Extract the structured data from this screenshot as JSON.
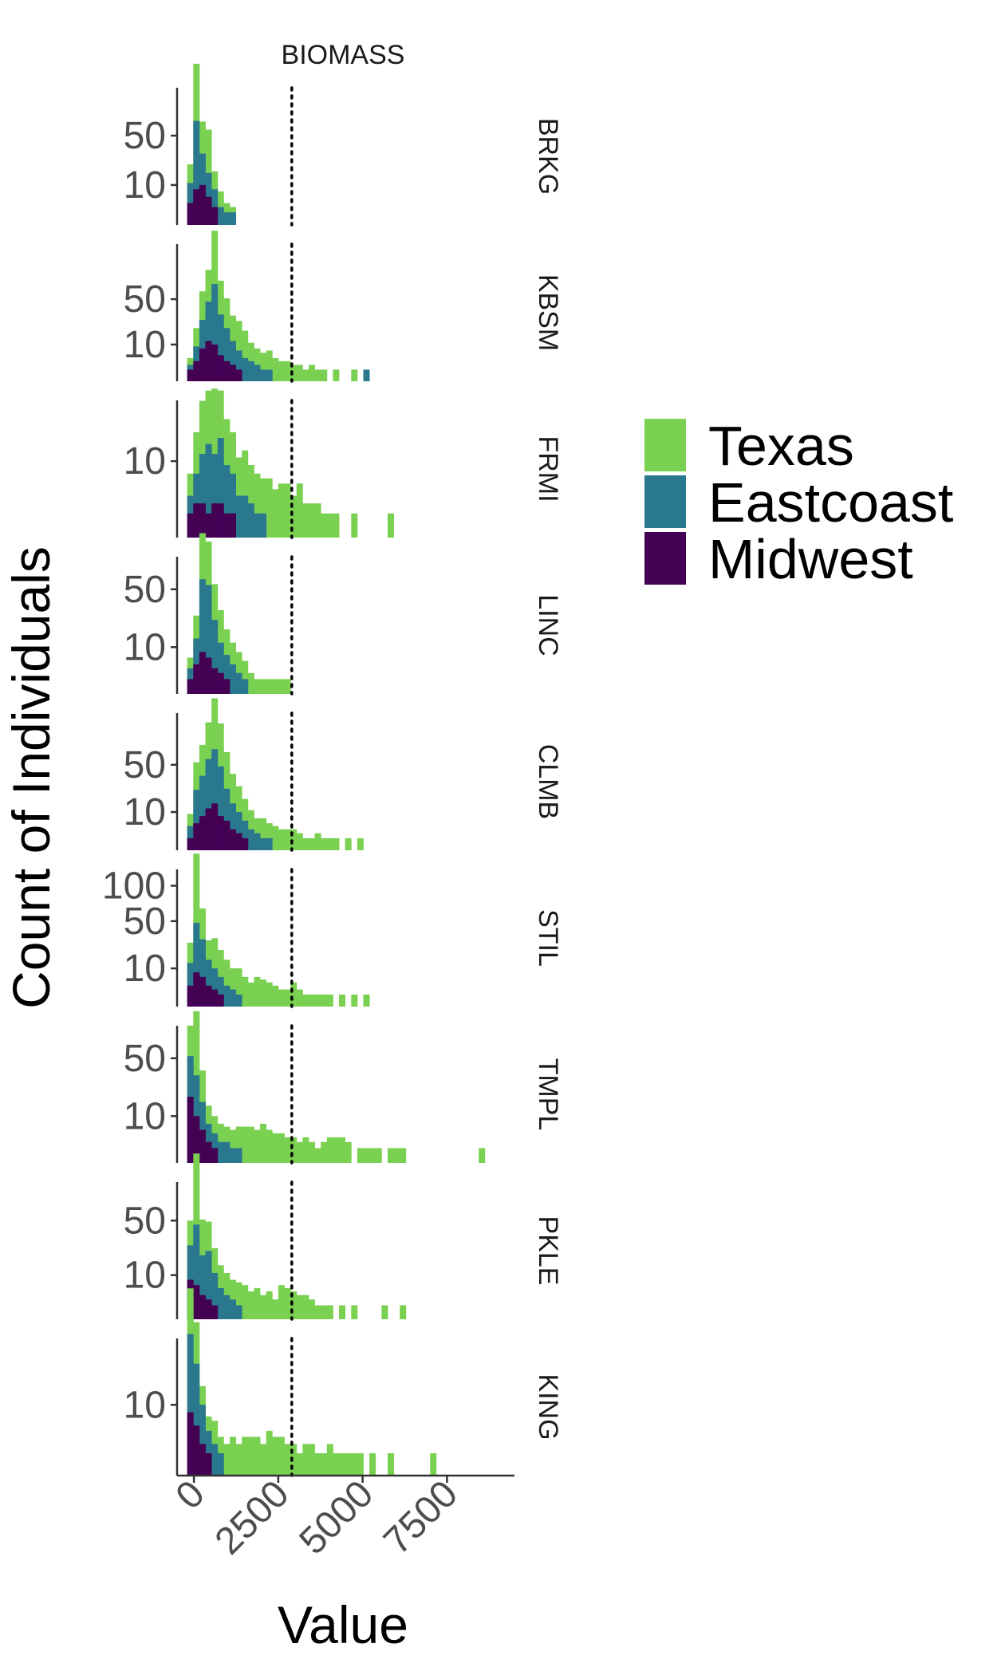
{
  "chart_data": {
    "type": "bar",
    "layout": "stacked histogram facets",
    "title": "BIOMASS",
    "xlabel": "Value",
    "ylabel": "Count of Individuals",
    "y_scale": "sqrt",
    "xlim": [
      -500,
      9500
    ],
    "x_ticks": [
      0,
      2500,
      5000,
      7500
    ],
    "x_tick_labels": [
      "0",
      "2500",
      "5000",
      "7500"
    ],
    "reference_line": 2900,
    "bin_start": -200,
    "bin_width": 180,
    "grid": false,
    "legend_position": "right",
    "series": [
      {
        "name": "Texas",
        "color": "#7AD151"
      },
      {
        "name": "Eastcoast",
        "color": "#2A788E"
      },
      {
        "name": "Midwest",
        "color": "#440154"
      }
    ],
    "facets": [
      {
        "label": "BRKG",
        "ymax": 110,
        "y_ticks": [
          10,
          50
        ],
        "y_tick_labels": [
          "10",
          "50"
        ],
        "Midwest": [
          3,
          8,
          10,
          5,
          2
        ],
        "Eastcoast": [
          8,
          60,
          22,
          12,
          6,
          2,
          1,
          1
        ],
        "Texas": [
          12,
          95,
          35,
          40,
          10,
          5,
          2,
          1
        ]
      },
      {
        "label": "KBSM",
        "ymax": 130,
        "y_ticks": [
          10,
          50
        ],
        "y_tick_labels": [
          "10",
          "50"
        ],
        "Midwest": [
          1,
          3,
          8,
          12,
          10,
          5,
          3,
          2,
          1
        ],
        "Eastcoast": [
          1,
          6,
          20,
          35,
          60,
          28,
          18,
          10,
          6,
          4,
          3,
          2,
          1,
          1,
          0,
          0,
          0,
          0,
          0,
          0,
          0,
          0,
          0,
          0,
          0,
          0,
          0,
          0,
          0,
          1
        ],
        "Texas": [
          2,
          12,
          32,
          45,
          98,
          42,
          30,
          20,
          20,
          15,
          8,
          6,
          5,
          6,
          4,
          3,
          3,
          2,
          2,
          1,
          2,
          1,
          1,
          0,
          1,
          0,
          0,
          1
        ]
      },
      {
        "label": "FRMI",
        "ymax": 30,
        "y_ticks": [
          10
        ],
        "y_tick_labels": [
          "10"
        ],
        "Midwest": [
          1,
          2,
          2,
          1,
          2,
          2,
          1,
          1
        ],
        "Eastcoast": [
          2,
          5,
          10,
          14,
          10,
          15,
          8,
          6,
          3,
          3,
          2,
          1,
          1
        ],
        "Texas": [
          4,
          12,
          20,
          22,
          26,
          20,
          15,
          12,
          8,
          10,
          7,
          6,
          5,
          6,
          4,
          5,
          5,
          3,
          5,
          2,
          2,
          2,
          1,
          1,
          1,
          0,
          0,
          1,
          0,
          0,
          0,
          0,
          0,
          1
        ]
      },
      {
        "label": "LINC",
        "ymax": 80,
        "y_ticks": [
          10,
          50
        ],
        "y_tick_labels": [
          "10",
          "50"
        ],
        "Midwest": [
          1,
          4,
          8,
          6,
          3,
          2,
          1
        ],
        "Eastcoast": [
          2,
          10,
          52,
          48,
          22,
          10,
          6,
          4,
          2,
          1
        ],
        "Texas": [
          3,
          14,
          58,
          52,
          30,
          20,
          12,
          8,
          6,
          4,
          2,
          1,
          1,
          1,
          1,
          1,
          1
        ]
      },
      {
        "label": "CLMB",
        "ymax": 120,
        "y_ticks": [
          10,
          50
        ],
        "y_tick_labels": [
          "10",
          "50"
        ],
        "Midwest": [
          1,
          5,
          8,
          12,
          15,
          8,
          6,
          3,
          2,
          1
        ],
        "Eastcoast": [
          3,
          20,
          30,
          45,
          55,
          40,
          20,
          12,
          8,
          5,
          3,
          2,
          1,
          1
        ],
        "Texas": [
          5,
          28,
          38,
          55,
          88,
          62,
          40,
          25,
          18,
          12,
          8,
          5,
          6,
          4,
          4,
          3,
          3,
          3,
          2,
          1,
          1,
          2,
          1,
          1,
          1,
          0,
          1,
          0,
          1
        ]
      },
      {
        "label": "STIL",
        "ymax": 120,
        "y_ticks": [
          10,
          50,
          100
        ],
        "y_tick_labels": [
          "10",
          "50",
          "100"
        ],
        "Midwest": [
          3,
          8,
          6,
          3,
          2,
          1
        ],
        "Eastcoast": [
          10,
          40,
          25,
          12,
          8,
          5,
          3,
          2,
          1
        ],
        "Texas": [
          15,
          112,
          35,
          15,
          22,
          16,
          12,
          8,
          9,
          6,
          4,
          6,
          5,
          4,
          3,
          2,
          2,
          4,
          2,
          1,
          1,
          1,
          1,
          1,
          0,
          1,
          0,
          1,
          0,
          1
        ]
      },
      {
        "label": "TMPL",
        "ymax": 80,
        "y_ticks": [
          10,
          50
        ],
        "y_tick_labels": [
          "10",
          "50"
        ],
        "Midwest": [
          20,
          10,
          5,
          2,
          1
        ],
        "Eastcoast": [
          32,
          25,
          12,
          5,
          3,
          2,
          2,
          1,
          1
        ],
        "Texas": [
          34,
          70,
          22,
          8,
          6,
          5,
          4,
          4,
          5,
          6,
          6,
          5,
          7,
          5,
          4,
          4,
          3,
          3,
          2,
          3,
          2,
          1,
          2,
          3,
          3,
          3,
          2,
          0,
          1,
          1,
          1,
          1,
          0,
          1,
          1,
          1,
          0,
          0,
          0,
          0,
          0,
          0,
          0,
          0,
          0,
          0,
          0,
          0,
          1
        ]
      },
      {
        "label": "PKLE",
        "ymax": 90,
        "y_ticks": [
          10,
          50
        ],
        "y_tick_labels": [
          "10",
          "50"
        ],
        "Midwest": [
          8,
          6,
          3,
          2,
          1
        ],
        "Eastcoast": [
          20,
          40,
          18,
          22,
          10,
          5,
          3,
          2,
          1
        ],
        "Texas": [
          22,
          95,
          30,
          25,
          15,
          10,
          8,
          6,
          6,
          6,
          4,
          5,
          3,
          4,
          2,
          6,
          5,
          4,
          3,
          3,
          2,
          1,
          1,
          1,
          0,
          1,
          0,
          1,
          0,
          0,
          0,
          0,
          1,
          0,
          0,
          1
        ]
      },
      {
        "label": "KING",
        "ymax": 35,
        "y_ticks": [
          10
        ],
        "y_tick_labels": [
          "10"
        ],
        "Midwest": [
          8,
          5,
          2,
          1
        ],
        "Eastcoast": [
          32,
          20,
          8,
          3,
          2,
          1
        ],
        "Texas": [
          30,
          22,
          6,
          3,
          4,
          2,
          2,
          3,
          2,
          3,
          3,
          3,
          2,
          4,
          3,
          3,
          2,
          2,
          1,
          2,
          2,
          1,
          1,
          2,
          1,
          1,
          1,
          1,
          1,
          0,
          1,
          0,
          0,
          1,
          0,
          0,
          0,
          0,
          0,
          0,
          1
        ]
      }
    ]
  }
}
